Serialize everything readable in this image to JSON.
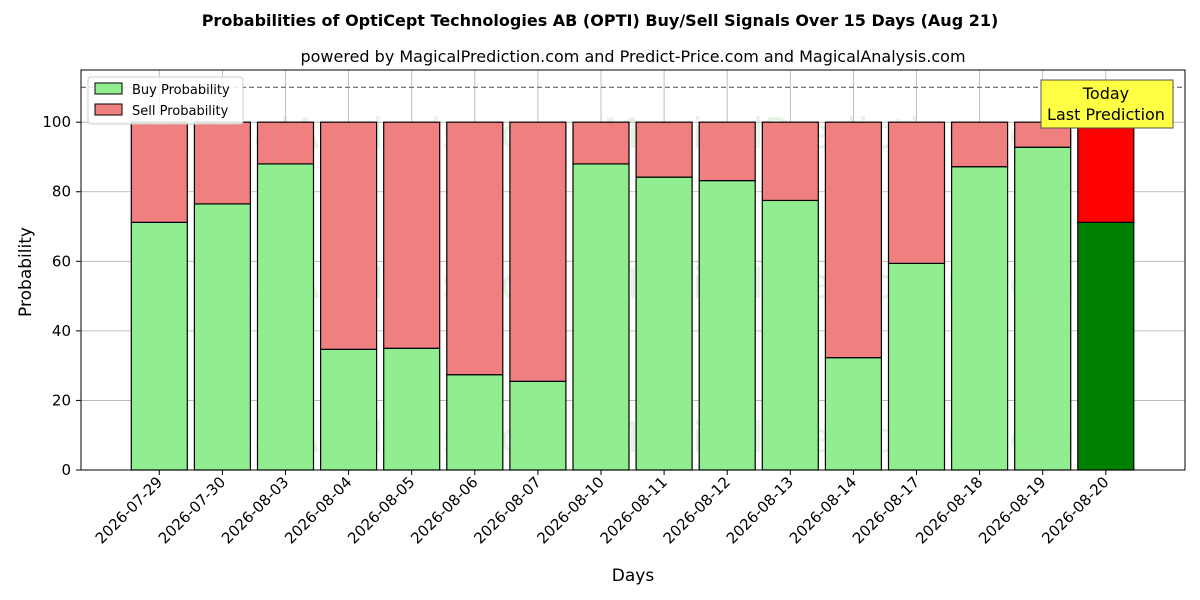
{
  "chart_data": {
    "type": "bar",
    "title": "Probabilities of OptiCept Technologies AB (OPTI) Buy/Sell Signals Over 15 Days (Aug 21)",
    "subtitle": "powered by MagicalPrediction.com and Predict-Price.com and MagicalAnalysis.com",
    "xlabel": "Days",
    "ylabel": "Probability",
    "ylim": [
      0,
      115
    ],
    "yticks": [
      0,
      20,
      40,
      60,
      80,
      100
    ],
    "grid": true,
    "stacked": true,
    "legend_position": "top-left",
    "reference_line": 110,
    "categories": [
      "2026-07-29",
      "2026-07-30",
      "2026-08-03",
      "2026-08-04",
      "2026-08-05",
      "2026-08-06",
      "2026-08-07",
      "2026-08-10",
      "2026-08-11",
      "2026-08-12",
      "2026-08-13",
      "2026-08-14",
      "2026-08-17",
      "2026-08-18",
      "2026-08-19",
      "2026-08-20"
    ],
    "series": [
      {
        "name": "Buy Probability",
        "color": "#90ee90",
        "highlight_color": "#008000",
        "values": [
          71.2,
          76.5,
          88.0,
          34.7,
          35.0,
          27.4,
          25.5,
          88.0,
          84.2,
          83.2,
          77.5,
          32.3,
          59.4,
          87.2,
          92.8,
          71.2
        ]
      },
      {
        "name": "Sell Probability",
        "color": "#f08080",
        "highlight_color": "#ff0000",
        "values": [
          28.8,
          23.5,
          12.0,
          65.3,
          65.0,
          72.6,
          74.5,
          12.0,
          15.8,
          16.8,
          22.5,
          67.7,
          40.6,
          12.8,
          7.2,
          28.8
        ]
      }
    ],
    "annotation": {
      "lines": [
        "Today",
        "Last Prediction"
      ],
      "background": "#ffff44"
    },
    "watermarks": [
      "MagicalAnalysis.com",
      "MagicalPrediction.com"
    ]
  }
}
